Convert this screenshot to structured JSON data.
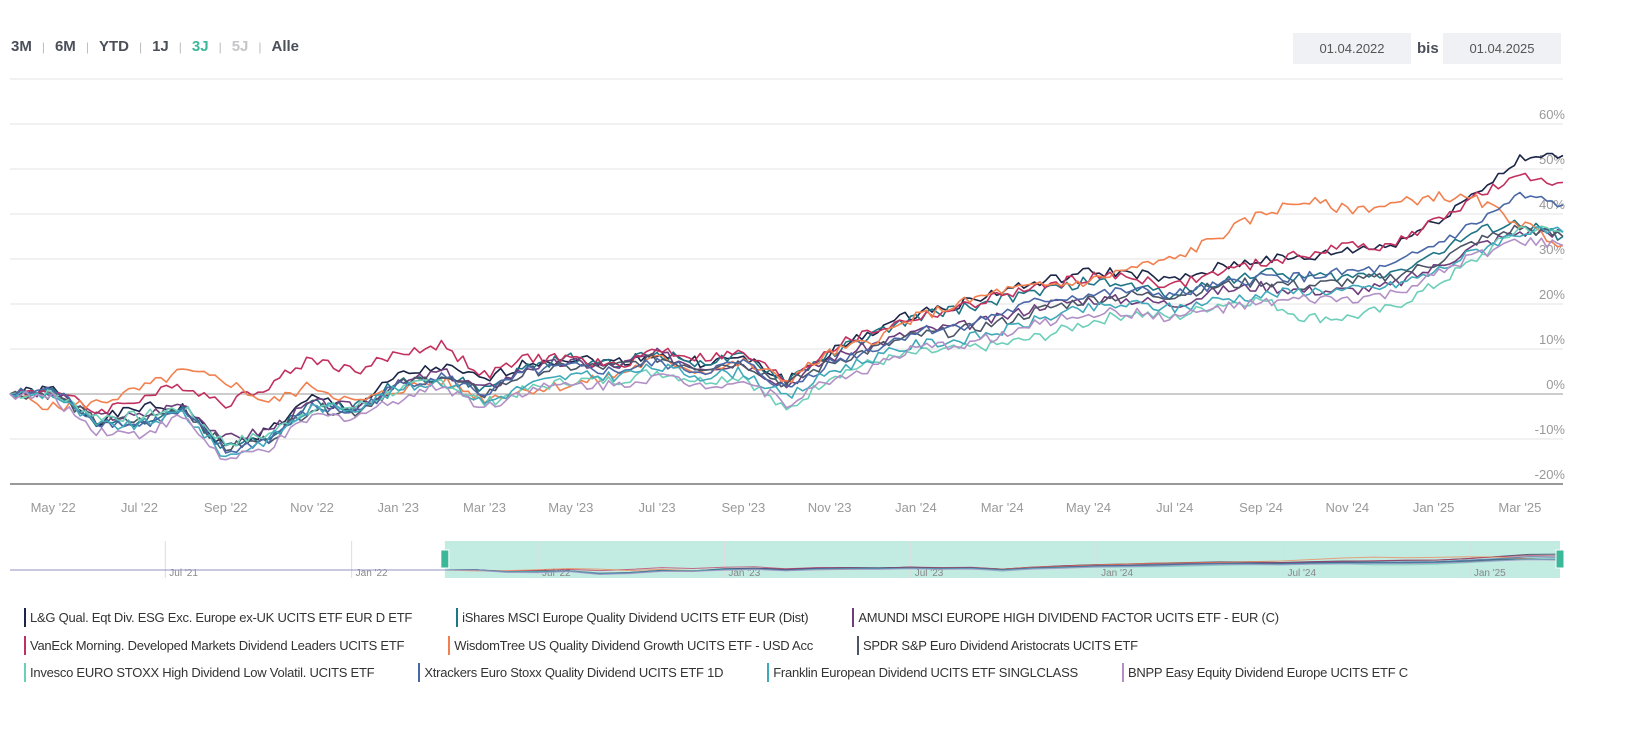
{
  "range_buttons": [
    {
      "label": "3M",
      "state": "normal"
    },
    {
      "label": "6M",
      "state": "normal"
    },
    {
      "label": "YTD",
      "state": "normal"
    },
    {
      "label": "1J",
      "state": "normal"
    },
    {
      "label": "3J",
      "state": "active"
    },
    {
      "label": "5J",
      "state": "disabled"
    },
    {
      "label": "Alle",
      "state": "normal"
    }
  ],
  "date_range": {
    "from": "01.04.2022",
    "separator": "bis",
    "to": "01.04.2025"
  },
  "chart_data": {
    "type": "line",
    "x": [
      "2022-04",
      "2022-05",
      "2022-06",
      "2022-07",
      "2022-08",
      "2022-09",
      "2022-10",
      "2022-11",
      "2022-12",
      "2023-01",
      "2023-02",
      "2023-03",
      "2023-04",
      "2023-05",
      "2023-06",
      "2023-07",
      "2023-08",
      "2023-09",
      "2023-10",
      "2023-11",
      "2023-12",
      "2024-01",
      "2024-02",
      "2024-03",
      "2024-04",
      "2024-05",
      "2024-06",
      "2024-07",
      "2024-08",
      "2024-09",
      "2024-10",
      "2024-11",
      "2024-12",
      "2025-01",
      "2025-02",
      "2025-03",
      "2025-04"
    ],
    "x_tick_labels": [
      "May '22",
      "Jul '22",
      "Sep '22",
      "Nov '22",
      "Jan '23",
      "Mar '23",
      "May '23",
      "Jul '23",
      "Sep '23",
      "Nov '23",
      "Jan '24",
      "Mar '24",
      "May '24",
      "Jul '24",
      "Sep '24",
      "Nov '24",
      "Jan '25",
      "Mar '25"
    ],
    "y_tick_labels": [
      "60%",
      "50%",
      "40%",
      "30%",
      "20%",
      "10%",
      "0%",
      "-10%",
      "-20%"
    ],
    "ylim": [
      -20,
      70
    ],
    "yunit": "%",
    "grid": true,
    "legend_placement": "bottom",
    "series": [
      {
        "name": "L&G Qual. Eqt Div. ESG Exc. Europe ex-UK UCITS ETF EUR D ETF",
        "color": "#1b2547",
        "values": [
          0,
          1,
          -6,
          -3,
          -3,
          -12,
          -8,
          -1,
          -3,
          4,
          6,
          3,
          7,
          8,
          7,
          9,
          7,
          8,
          3,
          9,
          14,
          18,
          20,
          23,
          25,
          27,
          27,
          25,
          28,
          30,
          30,
          32,
          33,
          38,
          45,
          52,
          53
        ]
      },
      {
        "name": "iShares MSCI Europe Quality Dividend UCITS ETF EUR (Dist)",
        "color": "#1e7586",
        "values": [
          0,
          1,
          -7,
          -6,
          -3,
          -12,
          -9,
          -2,
          -3,
          3,
          4,
          1,
          6,
          8,
          7,
          9,
          7,
          8,
          3,
          9,
          13,
          17,
          19,
          21,
          23,
          25,
          24,
          22,
          25,
          27,
          26,
          26,
          27,
          31,
          36,
          38,
          35
        ]
      },
      {
        "name": "AMUNDI MSCI EUROPE HIGH DIVIDEND FACTOR UCITS ETF - EUR (C)",
        "color": "#6e3d7c",
        "values": [
          0,
          0,
          -5,
          -5,
          -2,
          -10,
          -8,
          -2,
          -3,
          2,
          5,
          1,
          6,
          7,
          6,
          9,
          6,
          7,
          2,
          8,
          11,
          14,
          15,
          17,
          20,
          21,
          21,
          20,
          23,
          24,
          23,
          23,
          24,
          28,
          33,
          36,
          36
        ]
      },
      {
        "name": "VanEck Morning. Developed Markets Dividend Leaders UCITS ETF",
        "color": "#c2305e",
        "values": [
          0,
          1,
          -4,
          -1,
          2,
          -2,
          2,
          8,
          5,
          9,
          11,
          4,
          8,
          8,
          6,
          10,
          8,
          9,
          3,
          10,
          14,
          17,
          19,
          22,
          24,
          26,
          26,
          24,
          27,
          29,
          31,
          33,
          33,
          38,
          44,
          48,
          47
        ]
      },
      {
        "name": "WisdomTree US Quality Dividend Growth UCITS ETF - USD Acc",
        "color": "#f2804f",
        "values": [
          0,
          -3,
          -2,
          1,
          5,
          3,
          -2,
          2,
          -2,
          1,
          3,
          -1,
          1,
          2,
          4,
          8,
          5,
          7,
          3,
          9,
          12,
          17,
          20,
          23,
          24,
          25,
          28,
          30,
          35,
          40,
          43,
          41,
          42,
          44,
          43,
          38,
          33
        ]
      },
      {
        "name": "SPDR S&P Euro Dividend Aristocrats UCITS ETF",
        "color": "#4b5565",
        "values": [
          0,
          0,
          -6,
          -6,
          -3,
          -12,
          -10,
          -3,
          -4,
          2,
          4,
          0,
          5,
          6,
          6,
          8,
          6,
          7,
          2,
          7,
          10,
          13,
          14,
          16,
          19,
          21,
          22,
          22,
          24,
          25,
          24,
          25,
          26,
          29,
          34,
          37,
          35
        ]
      },
      {
        "name": "Invesco EURO STOXX High Dividend Low Volatil. UCITS ETF",
        "color": "#6ccfb9",
        "values": [
          0,
          0,
          -5,
          -5,
          -3,
          -11,
          -9,
          -3,
          -3,
          1,
          3,
          -2,
          1,
          3,
          3,
          5,
          3,
          4,
          -4,
          4,
          7,
          9,
          10,
          11,
          13,
          16,
          18,
          17,
          20,
          21,
          17,
          17,
          19,
          24,
          30,
          37,
          36
        ]
      },
      {
        "name": "Xtrackers Euro Stoxx Quality Dividend UCITS ETF 1D",
        "color": "#4a68a6",
        "values": [
          0,
          1,
          -6,
          -7,
          -4,
          -13,
          -10,
          -3,
          -4,
          2,
          4,
          0,
          5,
          6,
          5,
          7,
          5,
          7,
          1,
          7,
          10,
          14,
          15,
          18,
          21,
          22,
          23,
          22,
          24,
          26,
          26,
          27,
          28,
          33,
          38,
          44,
          42
        ]
      },
      {
        "name": "Franklin European Dividend UCITS ETF SINGLCLASS",
        "color": "#3fa9ba",
        "values": [
          0,
          0,
          -7,
          -7,
          -4,
          -14,
          -10,
          -3,
          -3,
          1,
          3,
          -2,
          2,
          4,
          4,
          6,
          4,
          5,
          -1,
          5,
          8,
          11,
          12,
          14,
          17,
          19,
          20,
          19,
          21,
          22,
          23,
          23,
          24,
          27,
          32,
          36,
          36
        ]
      },
      {
        "name": "BNPP Easy Equity Dividend Europe UCITS ETF C",
        "color": "#b290c6",
        "values": [
          0,
          -1,
          -8,
          -9,
          -5,
          -15,
          -12,
          -5,
          -5,
          -1,
          2,
          -3,
          1,
          2,
          2,
          4,
          2,
          3,
          -2,
          3,
          6,
          10,
          11,
          13,
          16,
          18,
          18,
          17,
          19,
          20,
          21,
          21,
          22,
          26,
          31,
          34,
          33
        ]
      }
    ]
  },
  "navigator": {
    "tick_labels": [
      "Jul '21",
      "Jan '22",
      "Jul '22",
      "Jan '23",
      "Jul '23",
      "Jan '24",
      "Jul '24",
      "Jan '25"
    ],
    "selection_color": "#c2ebe2"
  }
}
